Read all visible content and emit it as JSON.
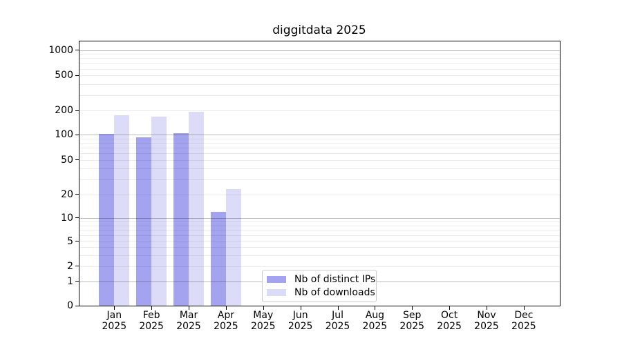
{
  "chart_data": {
    "type": "bar",
    "title": "diggitdata 2025",
    "categories": [
      "Jan",
      "Feb",
      "Mar",
      "Apr",
      "May",
      "Jun",
      "Jul",
      "Aug",
      "Sep",
      "Oct",
      "Nov",
      "Dec"
    ],
    "category_year": "2025",
    "series": [
      {
        "name": "Nb of distinct IPs",
        "color": "#a3a3ef",
        "values": [
          102,
          92,
          104,
          12,
          null,
          null,
          null,
          null,
          null,
          null,
          null,
          null
        ]
      },
      {
        "name": "Nb of downloads",
        "color": "#dcdcf8",
        "values": [
          175,
          167,
          193,
          23,
          null,
          null,
          null,
          null,
          null,
          null,
          null,
          null
        ]
      }
    ],
    "y_axis": {
      "scale": "symlog",
      "ticks": [
        0,
        1,
        2,
        5,
        10,
        20,
        50,
        100,
        200,
        500,
        1000
      ],
      "tick_labels": [
        "0",
        "1",
        "2",
        "5",
        "10",
        "20",
        "50",
        "100",
        "200",
        "500",
        "1000"
      ],
      "major_gridlines": [
        1,
        10,
        100,
        1000
      ]
    },
    "grid": {
      "shown": true,
      "minor_shown": true
    },
    "legend": {
      "position": "bottom-center"
    },
    "colors": {
      "major_grid": "#bababa",
      "minor_grid": "#e9e9e9",
      "spine": "#000000",
      "text": "#000000"
    }
  }
}
